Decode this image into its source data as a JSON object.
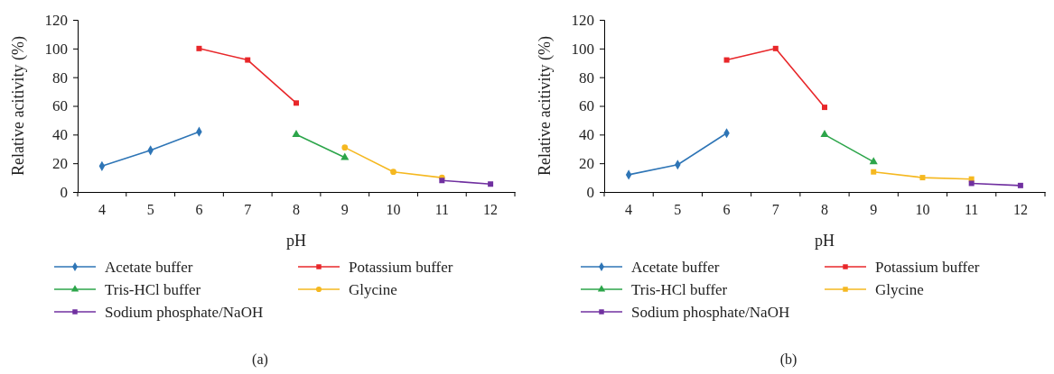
{
  "chart_data": [
    {
      "type": "line",
      "xlabel": "pH",
      "ylabel": "Relative acitivity (%)",
      "categories": [
        "4",
        "5",
        "6",
        "7",
        "8",
        "9",
        "10",
        "11",
        "12"
      ],
      "ylim": [
        0,
        120
      ],
      "yticks": [
        0,
        20,
        40,
        60,
        80,
        100,
        120
      ],
      "legend": "bottom",
      "line_style": "solid",
      "annotations": [
        "(a)"
      ],
      "series": [
        {
          "name": "Acetate buffer",
          "color": "#2e75b6",
          "marker": "diamond",
          "values": [
            18,
            29,
            42,
            null,
            null,
            null,
            null,
            null,
            null
          ]
        },
        {
          "name": "Potassium buffer",
          "color": "#e8272a",
          "marker": "square",
          "values": [
            null,
            null,
            100,
            92,
            62,
            null,
            null,
            null,
            null
          ]
        },
        {
          "name": "Tris-HCl buffer",
          "color": "#2ca54a",
          "marker": "triangle",
          "values": [
            null,
            null,
            null,
            null,
            40,
            24,
            null,
            null,
            null
          ]
        },
        {
          "name": "Glycine",
          "color": "#f5b820",
          "marker": "circle",
          "values": [
            null,
            null,
            null,
            null,
            null,
            31,
            14,
            10,
            null
          ]
        },
        {
          "name": "Sodium phosphate/NaOH",
          "color": "#7030a0",
          "marker": "square",
          "values": [
            null,
            null,
            null,
            null,
            null,
            null,
            null,
            8,
            5.5
          ]
        }
      ]
    },
    {
      "type": "line",
      "xlabel": "pH",
      "ylabel": "Relative acitivity (%)",
      "categories": [
        "4",
        "5",
        "6",
        "7",
        "8",
        "9",
        "10",
        "11",
        "12"
      ],
      "ylim": [
        0,
        120
      ],
      "yticks": [
        0,
        20,
        40,
        60,
        80,
        100,
        120
      ],
      "legend": "bottom",
      "line_style": "solid",
      "annotations": [
        "(b)"
      ],
      "series": [
        {
          "name": "Acetate buffer",
          "color": "#2e75b6",
          "marker": "diamond",
          "values": [
            12,
            19,
            41,
            null,
            null,
            null,
            null,
            null,
            null
          ]
        },
        {
          "name": "Potassium buffer",
          "color": "#e8272a",
          "marker": "square",
          "values": [
            null,
            null,
            92,
            100,
            59,
            null,
            null,
            null,
            null
          ]
        },
        {
          "name": "Tris-HCl buffer",
          "color": "#2ca54a",
          "marker": "triangle",
          "values": [
            null,
            null,
            null,
            null,
            40,
            21,
            null,
            null,
            null
          ]
        },
        {
          "name": "Glycine",
          "color": "#f5b820",
          "marker": "square",
          "values": [
            null,
            null,
            null,
            null,
            null,
            14,
            10,
            9,
            null
          ]
        },
        {
          "name": "Sodium phosphate/NaOH",
          "color": "#7030a0",
          "marker": "square",
          "values": [
            null,
            null,
            null,
            null,
            null,
            null,
            null,
            6,
            4.5
          ]
        }
      ]
    }
  ]
}
